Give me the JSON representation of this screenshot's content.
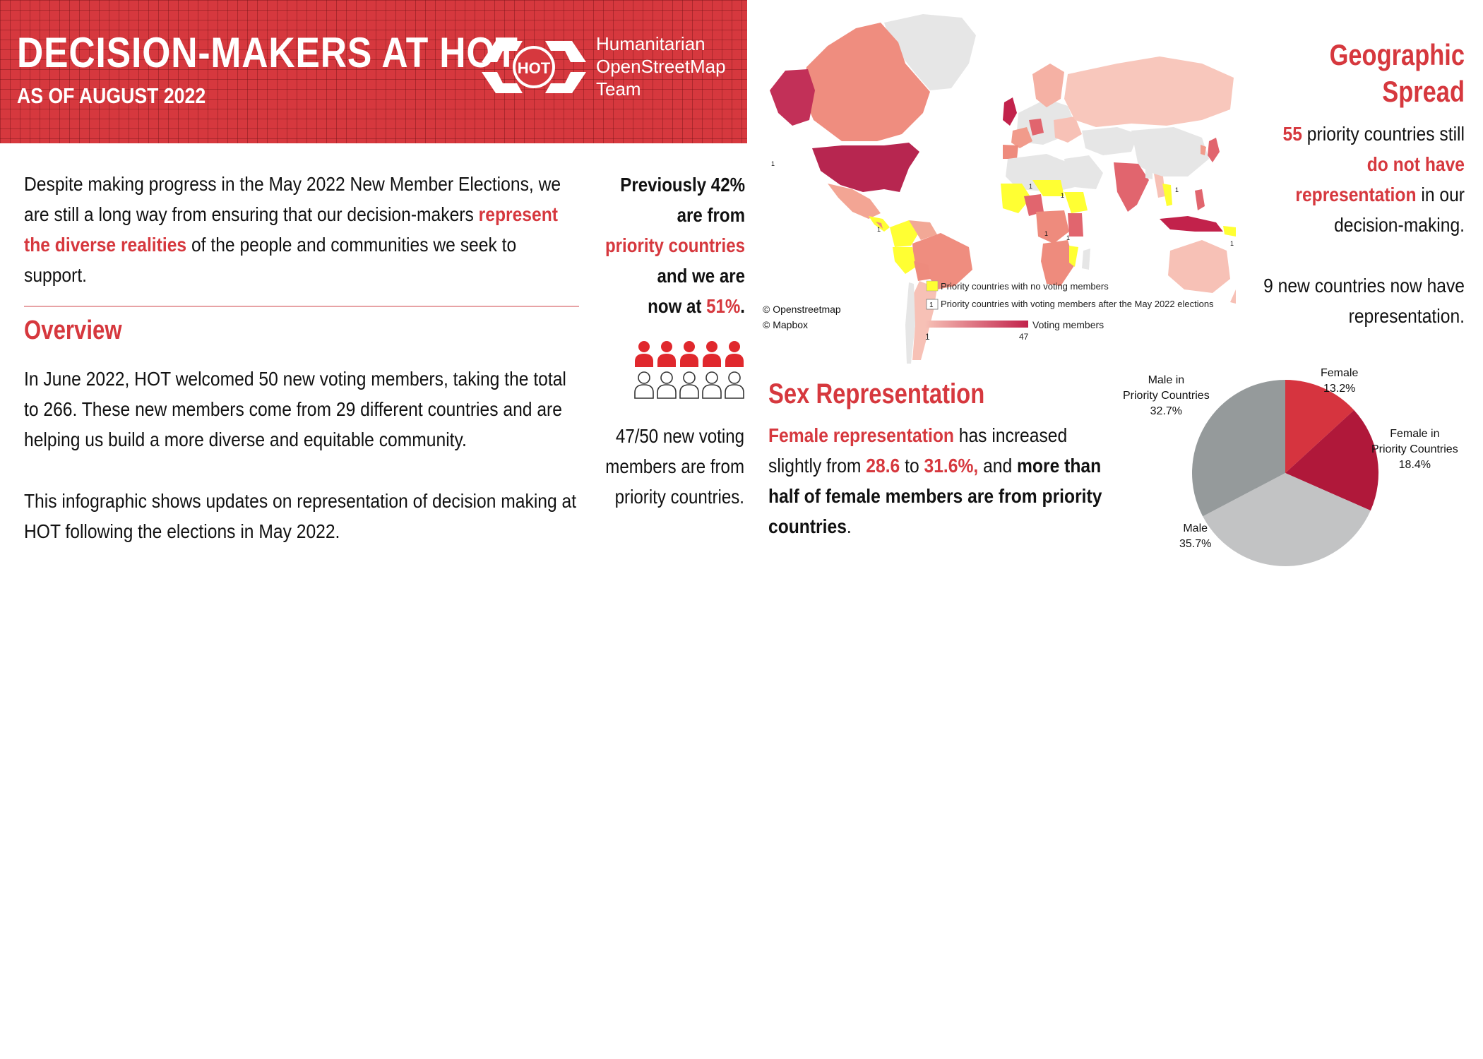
{
  "header": {
    "title": "DECISION-MAKERS AT HOT",
    "subtitle": "AS OF AUGUST 2022",
    "logo_text": "HOT",
    "org_name_lines": [
      "Humanitarian",
      "OpenStreetMap",
      "Team"
    ]
  },
  "intro": {
    "part1": "Despite making progress in the May 2022 New Member Elections, we are still a long way from ensuring that our decision-makers ",
    "highlight": "represent the diverse realities",
    "part2": " of the people and communities we seek to support."
  },
  "overview": {
    "heading": "Overview",
    "p1": "In June 2022, HOT welcomed 50 new voting members, taking the total to 266. These new members come from 29 different countries and are helping us build a more diverse and equitable community.",
    "p2": "This infographic shows updates on representation of decision making at HOT following the elections in May 2022."
  },
  "priority_stat": {
    "line1": "Previously 42%",
    "line2": "are from",
    "highlight": "priority countries",
    "line3": "and we are",
    "line4": "now at ",
    "value": "51%",
    "end": ".",
    "icons_filled": 5,
    "icons_total": 10,
    "new_members": "47/50 new voting members are from priority countries."
  },
  "map": {
    "credits": [
      "© Openstreetmap",
      "© Mapbox"
    ],
    "legend_no_voting": "Priority countries with no voting members",
    "legend_box_number": "1",
    "legend_with_voting": "Priority countries with voting members after the May 2022 elections",
    "legend_scale_label": "Voting members",
    "scale_min": "1",
    "scale_max": "47",
    "marker_value": "1",
    "colors": {
      "low": "#f7c1b6",
      "high": "#c2224b",
      "no_voting": "#ffff33",
      "land": "#e6e6e6"
    }
  },
  "geographic": {
    "heading_line1": "Geographic",
    "heading_line2": "Spread",
    "count": "55",
    "text1": " priority countries still ",
    "highlight": "do not have representation",
    "text2": " in our decision-making.",
    "new_countries": "9 new countries now have representation."
  },
  "sex": {
    "heading": "Sex Representation",
    "highlight": "Female representation",
    "text1": " has increased slightly  from ",
    "from": "28.6",
    "to_word": " to ",
    "to": "31.6%,",
    "text2": " and ",
    "bold_text": "more than half of female members are from priority countries",
    "end": "."
  },
  "chart_data": {
    "type": "pie",
    "slices": [
      {
        "label": "Female",
        "value": 13.2,
        "display": "13.2%",
        "color": "#d6343f"
      },
      {
        "label": "Female in Priority Countries",
        "value": 18.4,
        "display": "18.4%",
        "color": "#b0183a"
      },
      {
        "label": "Male",
        "value": 35.7,
        "display": "35.7%",
        "color": "#c2c3c4"
      },
      {
        "label": "Male in Priority Countries",
        "value": 32.7,
        "display": "32.7%",
        "color": "#959a9b"
      }
    ]
  }
}
